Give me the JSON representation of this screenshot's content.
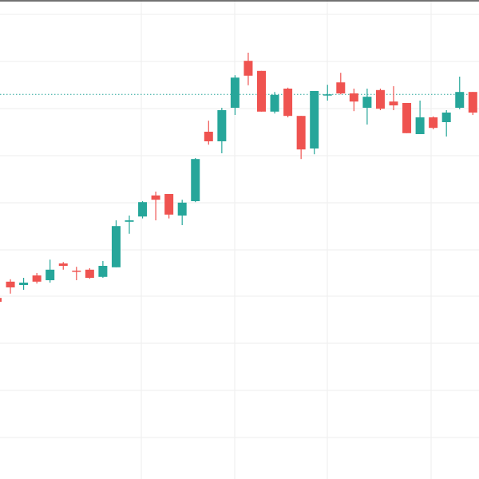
{
  "chart_data": {
    "type": "candlestick",
    "title": "",
    "xlabel": "",
    "ylabel": "",
    "ylim": [
      0,
      1000
    ],
    "grid": true,
    "legend": "none",
    "colors": {
      "up": "#26a69a",
      "down": "#ef5350",
      "grid": "#eeeeee",
      "frame": "#444444",
      "price_line": "#26a69a"
    },
    "current_price": 803,
    "candles": [
      {
        "open": 378,
        "close": 370,
        "high": 385,
        "low": 362
      },
      {
        "open": 412,
        "close": 400,
        "high": 417,
        "low": 387
      },
      {
        "open": 405,
        "close": 410,
        "high": 420,
        "low": 395
      },
      {
        "open": 425,
        "close": 412,
        "high": 430,
        "low": 408
      },
      {
        "open": 415,
        "close": 437,
        "high": 458,
        "low": 410
      },
      {
        "open": 450,
        "close": 445,
        "high": 453,
        "low": 437
      },
      {
        "open": 435,
        "close": 433,
        "high": 443,
        "low": 415
      },
      {
        "open": 437,
        "close": 420,
        "high": 440,
        "low": 418
      },
      {
        "open": 422,
        "close": 445,
        "high": 455,
        "low": 420
      },
      {
        "open": 442,
        "close": 528,
        "high": 540,
        "low": 442
      },
      {
        "open": 537,
        "close": 540,
        "high": 550,
        "low": 512
      },
      {
        "open": 548,
        "close": 578,
        "high": 580,
        "low": 544
      },
      {
        "open": 592,
        "close": 583,
        "high": 600,
        "low": 540
      },
      {
        "open": 595,
        "close": 552,
        "high": 595,
        "low": 544
      },
      {
        "open": 550,
        "close": 577,
        "high": 583,
        "low": 530
      },
      {
        "open": 580,
        "close": 668,
        "high": 670,
        "low": 578
      },
      {
        "open": 725,
        "close": 705,
        "high": 748,
        "low": 698
      },
      {
        "open": 705,
        "close": 770,
        "high": 775,
        "low": 680
      },
      {
        "open": 775,
        "close": 838,
        "high": 843,
        "low": 760
      },
      {
        "open": 873,
        "close": 842,
        "high": 890,
        "low": 822
      },
      {
        "open": 852,
        "close": 767,
        "high": 852,
        "low": 767
      },
      {
        "open": 767,
        "close": 802,
        "high": 808,
        "low": 763
      },
      {
        "open": 815,
        "close": 758,
        "high": 817,
        "low": 755
      },
      {
        "open": 758,
        "close": 688,
        "high": 758,
        "low": 668
      },
      {
        "open": 690,
        "close": 810,
        "high": 810,
        "low": 678
      },
      {
        "open": 803,
        "close": 803,
        "high": 823,
        "low": 790
      },
      {
        "open": 828,
        "close": 805,
        "high": 848,
        "low": 803
      },
      {
        "open": 805,
        "close": 788,
        "high": 815,
        "low": 768
      },
      {
        "open": 775,
        "close": 798,
        "high": 815,
        "low": 740
      },
      {
        "open": 812,
        "close": 773,
        "high": 815,
        "low": 770
      },
      {
        "open": 788,
        "close": 780,
        "high": 820,
        "low": 770
      },
      {
        "open": 785,
        "close": 722,
        "high": 785,
        "low": 722
      },
      {
        "open": 720,
        "close": 755,
        "high": 790,
        "low": 720
      },
      {
        "open": 755,
        "close": 733,
        "high": 757,
        "low": 730
      },
      {
        "open": 745,
        "close": 765,
        "high": 770,
        "low": 715
      },
      {
        "open": 775,
        "close": 808,
        "high": 840,
        "low": 772
      },
      {
        "open": 808,
        "close": 765,
        "high": 808,
        "low": 760
      }
    ]
  }
}
